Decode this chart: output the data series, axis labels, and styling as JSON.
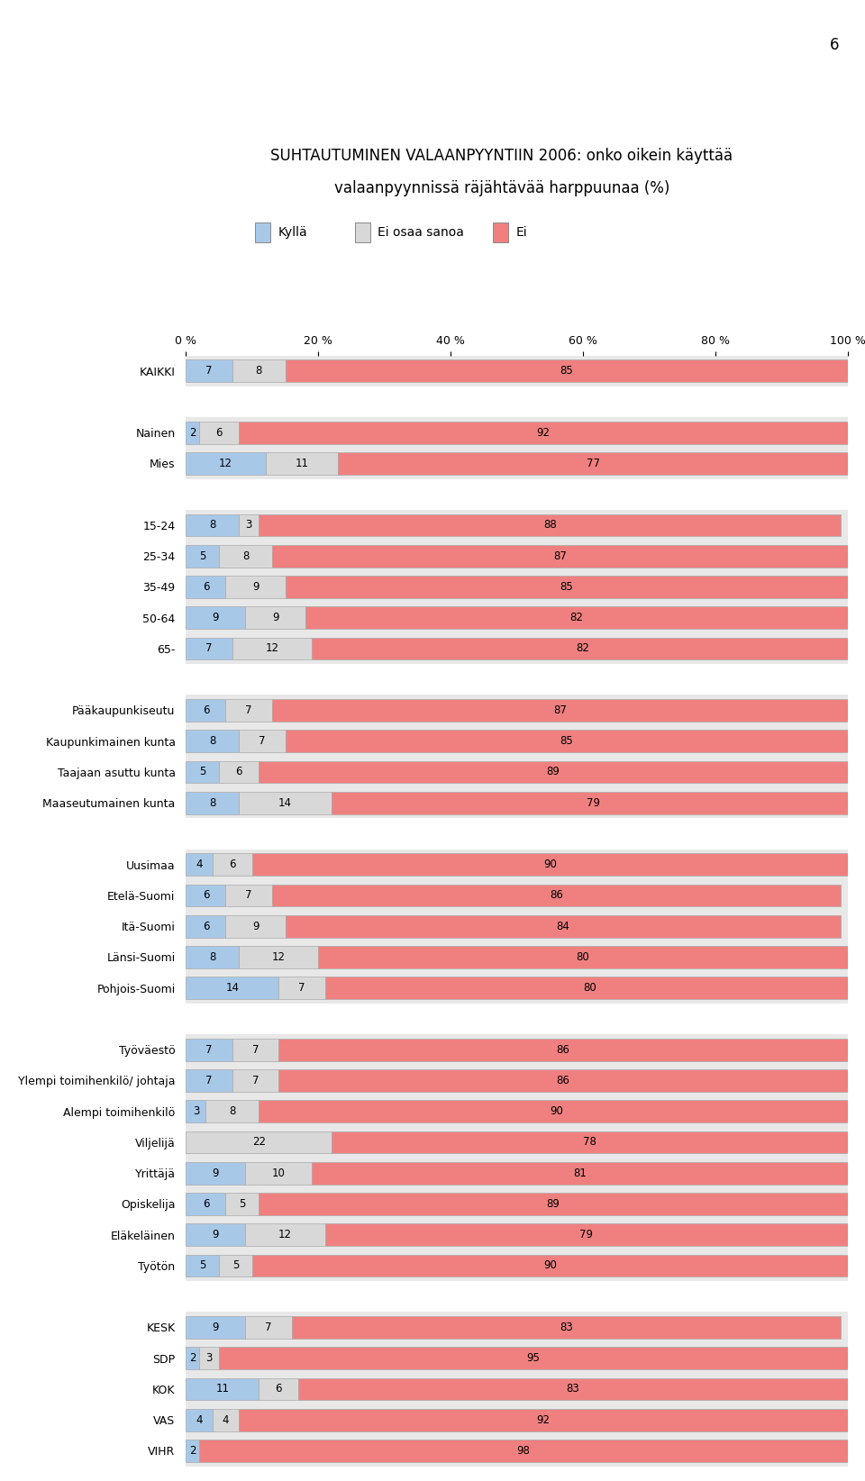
{
  "title_line1": "SUHTAUTUMINEN VALAANPYYNTIIN 2006: onko oikein käyttää",
  "title_line2": "valaanpyynnissä räjähtävää harppuunaa (%)",
  "legend_labels": [
    "Kyllä",
    "Ei osaa sanoa",
    "Ei"
  ],
  "color_kylla": "#a8c8e8",
  "color_eos": "#d8d8d8",
  "color_ei": "#f08080",
  "bar_outline": "#aaaaaa",
  "categories": [
    "KAIKKI",
    "",
    "Nainen",
    "Mies",
    "",
    "15-24",
    "25-34",
    "35-49",
    "50-64",
    "65-",
    "",
    "Pääkaupunkiseutu",
    "Kaupunkimainen kunta",
    "Taajaan asuttu kunta",
    "Maaseutumainen kunta",
    "",
    "Uusimaa",
    "Etelä-Suomi",
    "Itä-Suomi",
    "Länsi-Suomi",
    "Pohjois-Suomi",
    "",
    "Työväestö",
    "Ylempi toimihenkilö/ johtaja",
    "Alempi toimihenkilö",
    "Viljelijä",
    "Yrittäjä",
    "Opiskelija",
    "Eläkeläinen",
    "Työtön",
    "",
    "KESK",
    "SDP",
    "KOK",
    "VAS",
    "VIHR"
  ],
  "kylla": [
    7,
    0,
    2,
    12,
    0,
    8,
    5,
    6,
    9,
    7,
    0,
    6,
    8,
    5,
    8,
    0,
    4,
    6,
    6,
    8,
    14,
    0,
    7,
    7,
    3,
    0,
    9,
    6,
    9,
    5,
    0,
    9,
    2,
    11,
    4,
    2
  ],
  "eos": [
    8,
    0,
    6,
    11,
    0,
    3,
    8,
    9,
    9,
    12,
    0,
    7,
    7,
    6,
    14,
    0,
    6,
    7,
    9,
    12,
    7,
    0,
    7,
    7,
    8,
    22,
    10,
    5,
    12,
    5,
    0,
    7,
    3,
    6,
    4,
    0
  ],
  "ei": [
    85,
    0,
    92,
    77,
    0,
    88,
    87,
    85,
    82,
    82,
    0,
    87,
    85,
    89,
    79,
    0,
    90,
    86,
    84,
    80,
    80,
    0,
    86,
    86,
    90,
    78,
    81,
    89,
    79,
    90,
    0,
    83,
    95,
    83,
    92,
    98
  ],
  "plot_bg": "#e8e8e8",
  "sep_bg": "#e8e8e8",
  "page_number": "6",
  "fig_width": 9.6,
  "fig_height": 16.44,
  "bar_height": 0.72,
  "label_fontsize": 8.5,
  "ytick_fontsize": 9,
  "xtick_fontsize": 9,
  "title_fontsize": 12,
  "legend_fontsize": 10
}
